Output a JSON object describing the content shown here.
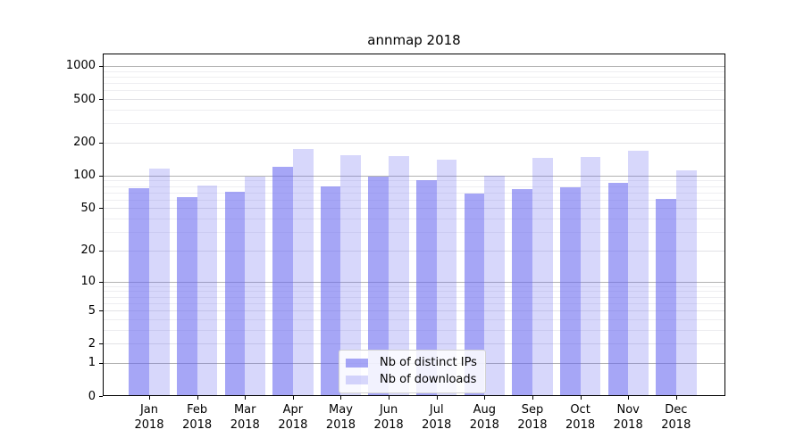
{
  "chart": {
    "title": "annmap 2018"
  },
  "chart_data": {
    "type": "bar",
    "title": "annmap 2018",
    "categories": [
      "Jan 2018",
      "Feb 2018",
      "Mar 2018",
      "Apr 2018",
      "May 2018",
      "Jun 2018",
      "Jul 2018",
      "Aug 2018",
      "Sep 2018",
      "Oct 2018",
      "Nov 2018",
      "Dec 2018"
    ],
    "x_tick_labels": [
      [
        "Jan",
        "2018"
      ],
      [
        "Feb",
        "2018"
      ],
      [
        "Mar",
        "2018"
      ],
      [
        "Apr",
        "2018"
      ],
      [
        "May",
        "2018"
      ],
      [
        "Jun",
        "2018"
      ],
      [
        "Jul",
        "2018"
      ],
      [
        "Aug",
        "2018"
      ],
      [
        "Sep",
        "2018"
      ],
      [
        "Oct",
        "2018"
      ],
      [
        "Nov",
        "2018"
      ],
      [
        "Dec",
        "2018"
      ]
    ],
    "series": [
      {
        "name": "Nb of distinct IPs",
        "color": "rgba(102,102,240,0.58)",
        "values": [
          77,
          63,
          71,
          121,
          80,
          98,
          90,
          68,
          75,
          78,
          86,
          61
        ]
      },
      {
        "name": "Nb of downloads",
        "color": "rgba(102,102,240,0.26)",
        "values": [
          116,
          81,
          98,
          175,
          154,
          151,
          139,
          100,
          145,
          149,
          169,
          112
        ]
      }
    ],
    "yscale": "log1p",
    "ylim": [
      0,
      1300
    ],
    "y_tick_values": [
      0,
      1,
      2,
      5,
      10,
      20,
      50,
      100,
      200,
      500,
      1000
    ],
    "y_tick_labels": [
      "0",
      "1",
      "2",
      "5",
      "10",
      "20",
      "50",
      "100",
      "200",
      "500",
      "1000"
    ],
    "y_decade_gridlines": [
      1,
      10,
      100,
      1000
    ],
    "y_sub_gridlines": [
      2,
      5,
      20,
      50,
      200,
      500
    ],
    "y_minor_gridlines": [
      3,
      4,
      6,
      7,
      8,
      9,
      30,
      40,
      60,
      70,
      80,
      90,
      300,
      400,
      600,
      700,
      800,
      900
    ],
    "grid": {
      "decade_color": "#b2b2b2",
      "sub_color": "#e2e2e6",
      "minor_color": "#eeeef1"
    },
    "legend_position": "lower center inside axes",
    "grid_orientation": "horizontal only"
  }
}
